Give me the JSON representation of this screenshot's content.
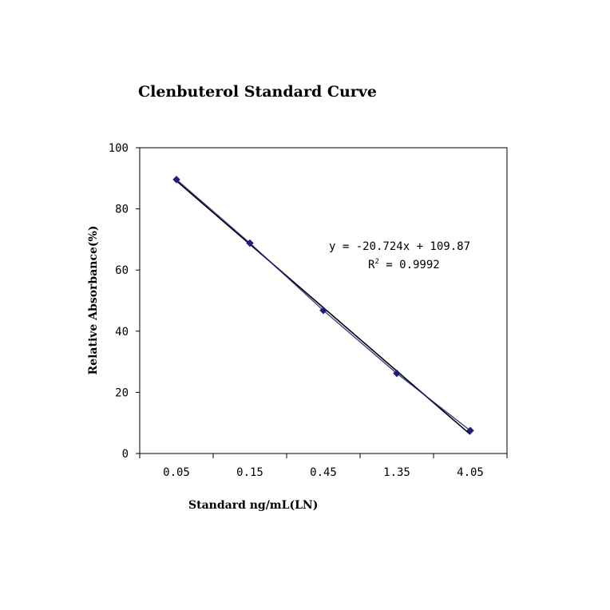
{
  "chart_data": {
    "type": "line",
    "title": "Clenbuterol Standard Curve",
    "xlabel": "Standard ng/mL(LN)",
    "ylabel": "Relative Absorbance(%)",
    "categories": [
      "0.05",
      "0.15",
      "0.45",
      "1.35",
      "4.05"
    ],
    "series": [
      {
        "values": [
          89.6,
          68.8,
          46.8,
          26.2,
          7.5
        ],
        "color": "#1f1f7a",
        "marker": "diamond"
      }
    ],
    "trendline": {
      "slope": -20.724,
      "intercept": 109.87,
      "color": "#000000",
      "equation": "y = -20.724x + 109.87",
      "r_squared_label": "R",
      "r_squared_sup": "2",
      "r_squared_value": " = 0.9992"
    },
    "ylim": [
      0,
      100
    ],
    "yticks": [
      "0",
      "20",
      "40",
      "60",
      "80",
      "100"
    ],
    "grid": false,
    "legend": false
  }
}
